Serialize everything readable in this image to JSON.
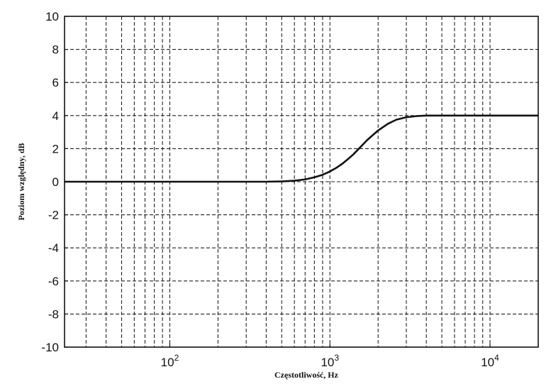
{
  "chart_data": {
    "type": "line",
    "title": "",
    "xlabel": "Częstotliwość, Hz",
    "ylabel": "Poziom względny, dB",
    "xscale": "log",
    "xlim": [
      22,
      20000
    ],
    "ylim": [
      -10,
      10
    ],
    "grid": true,
    "ytick_values": [
      -10,
      -8,
      -6,
      -4,
      -2,
      0,
      2,
      4,
      6,
      8,
      10
    ],
    "ytick_labels": [
      "-10",
      "-8",
      "-6",
      "-4",
      "-2",
      "0",
      "2",
      "4",
      "6",
      "8",
      "10"
    ],
    "xtick_values": [
      100,
      1000,
      10000
    ],
    "xtick_labels": [
      {
        "base": "10",
        "exp": "2"
      },
      {
        "base": "10",
        "exp": "3"
      },
      {
        "base": "10",
        "exp": "4"
      }
    ],
    "series": [
      {
        "x": [
          22,
          50,
          100,
          200,
          300,
          400,
          500,
          600,
          700,
          800,
          900,
          1000,
          1100,
          1200,
          1300,
          1400,
          1500,
          1700,
          2000,
          2300,
          2600,
          3000,
          3500,
          4000,
          5000,
          7000,
          10000,
          15000,
          20000
        ],
        "y": [
          0,
          0,
          0,
          0,
          0,
          0,
          0.02,
          0.06,
          0.14,
          0.27,
          0.42,
          0.62,
          0.85,
          1.1,
          1.38,
          1.65,
          1.95,
          2.5,
          3.1,
          3.5,
          3.75,
          3.9,
          3.97,
          4.0,
          4.0,
          4.0,
          4.0,
          4.0,
          4.0
        ]
      }
    ]
  }
}
